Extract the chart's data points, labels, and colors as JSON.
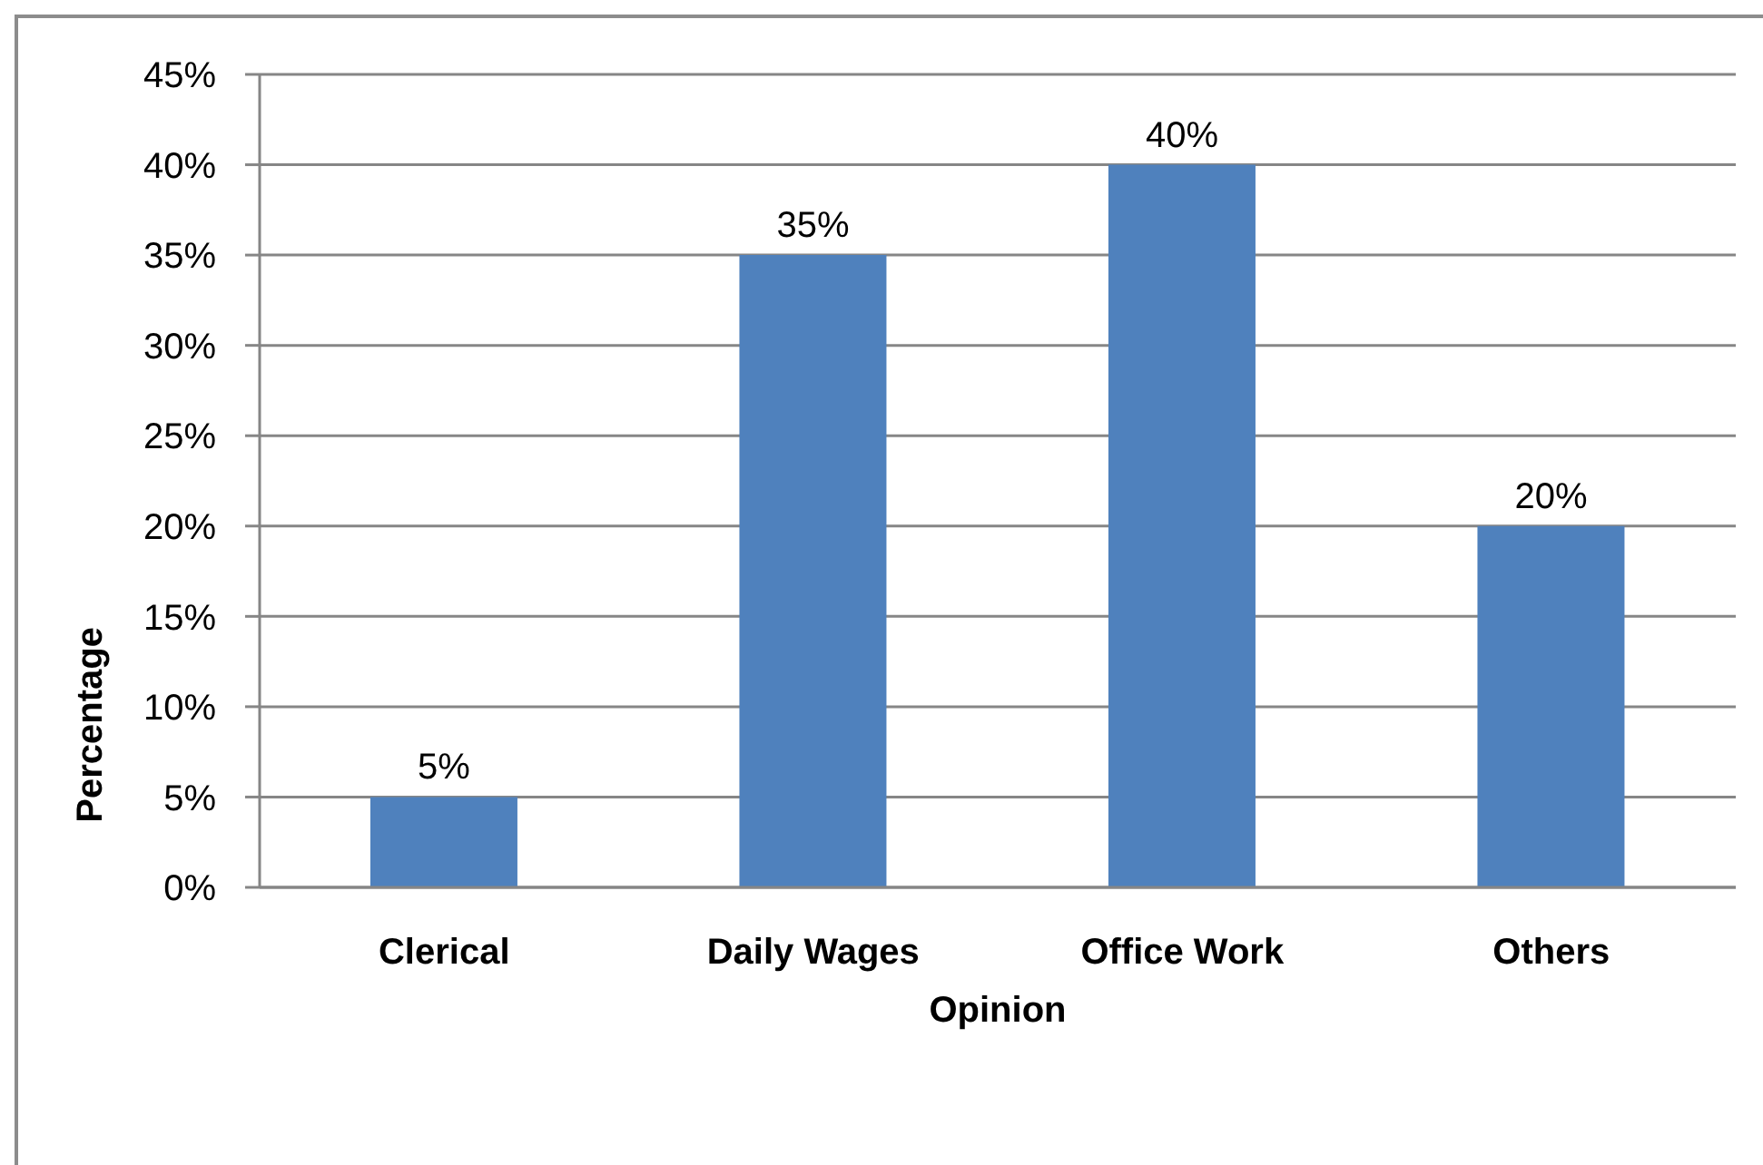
{
  "chart_data": {
    "type": "bar",
    "xlabel": "Opinion",
    "ylabel": "Percentage",
    "categories": [
      "Clerical",
      "Daily Wages",
      "Office Work",
      "Others"
    ],
    "values": [
      5,
      35,
      40,
      20
    ],
    "color": "#4f81bd",
    "value_labels": [
      "5%",
      "35%",
      "40%",
      "20%"
    ],
    "ylim": [
      0,
      45
    ],
    "yticks": [
      {
        "value": 0,
        "label": "0%"
      },
      {
        "value": 5,
        "label": "5%"
      },
      {
        "value": 10,
        "label": "10%"
      },
      {
        "value": 15,
        "label": "15%"
      },
      {
        "value": 20,
        "label": "20%"
      },
      {
        "value": 25,
        "label": "25%"
      },
      {
        "value": 30,
        "label": "30%"
      },
      {
        "value": 35,
        "label": "35%"
      },
      {
        "value": 40,
        "label": "40%"
      },
      {
        "value": 45,
        "label": "45%"
      }
    ],
    "grid": "y"
  }
}
